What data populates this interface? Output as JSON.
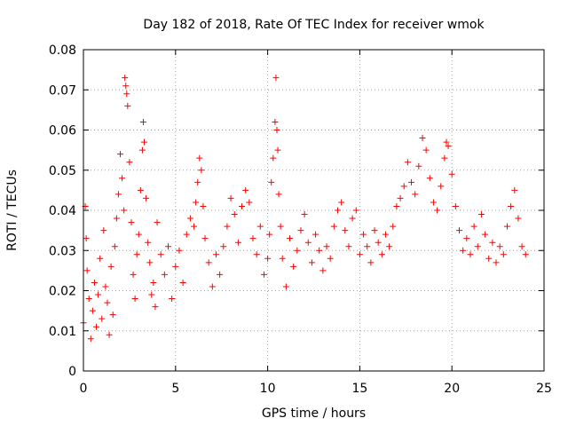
{
  "chart_data": {
    "type": "scatter",
    "title": "Day 182 of 2018, Rate Of TEC Index for receiver wmok",
    "xlabel": "GPS time / hours",
    "ylabel": "ROTI / TECUs",
    "xlim": [
      0,
      25
    ],
    "ylim": [
      0,
      0.08
    ],
    "x_ticks": [
      0,
      5,
      10,
      15,
      20,
      25
    ],
    "x_tick_labels": [
      "0",
      "5",
      "10",
      "15",
      "20",
      "25"
    ],
    "y_ticks": [
      0,
      0.01,
      0.02,
      0.03,
      0.04,
      0.05,
      0.06,
      0.07,
      0.08
    ],
    "y_tick_labels": [
      "0",
      "0.01",
      "0.02",
      "0.03",
      "0.04",
      "0.05",
      "0.06",
      "0.07",
      "0.08"
    ],
    "grid": true,
    "marker": "plus",
    "series": [
      {
        "name": "ROTI",
        "color": "#ff0000",
        "points": [
          [
            0.0,
            0.012
          ],
          [
            0.1,
            0.041
          ],
          [
            0.15,
            0.033
          ],
          [
            0.2,
            0.025
          ],
          [
            0.3,
            0.018
          ],
          [
            0.4,
            0.008
          ],
          [
            0.5,
            0.015
          ],
          [
            0.6,
            0.022
          ],
          [
            0.7,
            0.011
          ],
          [
            0.8,
            0.019
          ],
          [
            0.9,
            0.028
          ],
          [
            1.0,
            0.013
          ],
          [
            1.1,
            0.035
          ],
          [
            1.2,
            0.021
          ],
          [
            1.3,
            0.017
          ],
          [
            1.4,
            0.009
          ],
          [
            1.5,
            0.026
          ],
          [
            1.6,
            0.014
          ],
          [
            1.7,
            0.031
          ],
          [
            1.8,
            0.038
          ],
          [
            1.9,
            0.044
          ],
          [
            2.0,
            0.054
          ],
          [
            2.1,
            0.048
          ],
          [
            2.2,
            0.04
          ],
          [
            2.25,
            0.073
          ],
          [
            2.3,
            0.071
          ],
          [
            2.35,
            0.069
          ],
          [
            2.4,
            0.066
          ],
          [
            2.5,
            0.052
          ],
          [
            2.6,
            0.037
          ],
          [
            2.7,
            0.024
          ],
          [
            2.8,
            0.018
          ],
          [
            2.9,
            0.029
          ],
          [
            3.0,
            0.034
          ],
          [
            3.1,
            0.045
          ],
          [
            3.2,
            0.055
          ],
          [
            3.25,
            0.062
          ],
          [
            3.3,
            0.057
          ],
          [
            3.4,
            0.043
          ],
          [
            3.5,
            0.032
          ],
          [
            3.6,
            0.027
          ],
          [
            3.7,
            0.019
          ],
          [
            3.8,
            0.022
          ],
          [
            3.9,
            0.016
          ],
          [
            4.0,
            0.037
          ],
          [
            4.2,
            0.029
          ],
          [
            4.4,
            0.024
          ],
          [
            4.6,
            0.031
          ],
          [
            4.8,
            0.018
          ],
          [
            5.0,
            0.026
          ],
          [
            5.2,
            0.03
          ],
          [
            5.4,
            0.022
          ],
          [
            5.6,
            0.034
          ],
          [
            5.8,
            0.038
          ],
          [
            6.0,
            0.036
          ],
          [
            6.1,
            0.042
          ],
          [
            6.2,
            0.047
          ],
          [
            6.3,
            0.053
          ],
          [
            6.4,
            0.05
          ],
          [
            6.5,
            0.041
          ],
          [
            6.6,
            0.033
          ],
          [
            6.8,
            0.027
          ],
          [
            7.0,
            0.021
          ],
          [
            7.2,
            0.029
          ],
          [
            7.4,
            0.024
          ],
          [
            7.6,
            0.031
          ],
          [
            7.8,
            0.036
          ],
          [
            8.0,
            0.043
          ],
          [
            8.2,
            0.039
          ],
          [
            8.4,
            0.032
          ],
          [
            8.6,
            0.041
          ],
          [
            8.8,
            0.045
          ],
          [
            9.0,
            0.042
          ],
          [
            9.2,
            0.033
          ],
          [
            9.4,
            0.029
          ],
          [
            9.6,
            0.036
          ],
          [
            9.8,
            0.024
          ],
          [
            10.0,
            0.028
          ],
          [
            10.1,
            0.034
          ],
          [
            10.2,
            0.047
          ],
          [
            10.3,
            0.053
          ],
          [
            10.4,
            0.062
          ],
          [
            10.45,
            0.073
          ],
          [
            10.5,
            0.06
          ],
          [
            10.55,
            0.055
          ],
          [
            10.6,
            0.044
          ],
          [
            10.7,
            0.036
          ],
          [
            10.8,
            0.028
          ],
          [
            11.0,
            0.021
          ],
          [
            11.2,
            0.033
          ],
          [
            11.4,
            0.026
          ],
          [
            11.6,
            0.03
          ],
          [
            11.8,
            0.035
          ],
          [
            12.0,
            0.039
          ],
          [
            12.2,
            0.032
          ],
          [
            12.4,
            0.027
          ],
          [
            12.6,
            0.034
          ],
          [
            12.8,
            0.03
          ],
          [
            13.0,
            0.025
          ],
          [
            13.2,
            0.031
          ],
          [
            13.4,
            0.028
          ],
          [
            13.6,
            0.036
          ],
          [
            13.8,
            0.04
          ],
          [
            14.0,
            0.042
          ],
          [
            14.2,
            0.035
          ],
          [
            14.4,
            0.031
          ],
          [
            14.6,
            0.038
          ],
          [
            14.8,
            0.04
          ],
          [
            15.0,
            0.029
          ],
          [
            15.2,
            0.034
          ],
          [
            15.4,
            0.031
          ],
          [
            15.6,
            0.027
          ],
          [
            15.8,
            0.035
          ],
          [
            16.0,
            0.032
          ],
          [
            16.2,
            0.029
          ],
          [
            16.4,
            0.034
          ],
          [
            16.6,
            0.031
          ],
          [
            16.8,
            0.036
          ],
          [
            17.0,
            0.041
          ],
          [
            17.2,
            0.043
          ],
          [
            17.4,
            0.046
          ],
          [
            17.6,
            0.052
          ],
          [
            17.8,
            0.047
          ],
          [
            18.0,
            0.044
          ],
          [
            18.2,
            0.051
          ],
          [
            18.4,
            0.058
          ],
          [
            18.6,
            0.055
          ],
          [
            18.8,
            0.048
          ],
          [
            19.0,
            0.042
          ],
          [
            19.2,
            0.04
          ],
          [
            19.4,
            0.046
          ],
          [
            19.6,
            0.053
          ],
          [
            19.7,
            0.057
          ],
          [
            19.8,
            0.056
          ],
          [
            20.0,
            0.049
          ],
          [
            20.2,
            0.041
          ],
          [
            20.4,
            0.035
          ],
          [
            20.6,
            0.03
          ],
          [
            20.8,
            0.033
          ],
          [
            21.0,
            0.029
          ],
          [
            21.2,
            0.036
          ],
          [
            21.4,
            0.031
          ],
          [
            21.6,
            0.039
          ],
          [
            21.8,
            0.034
          ],
          [
            22.0,
            0.028
          ],
          [
            22.2,
            0.032
          ],
          [
            22.4,
            0.027
          ],
          [
            22.6,
            0.031
          ],
          [
            22.8,
            0.029
          ],
          [
            23.0,
            0.036
          ],
          [
            23.2,
            0.041
          ],
          [
            23.4,
            0.045
          ],
          [
            23.6,
            0.038
          ],
          [
            23.8,
            0.031
          ],
          [
            24.0,
            0.029
          ]
        ]
      }
    ]
  }
}
